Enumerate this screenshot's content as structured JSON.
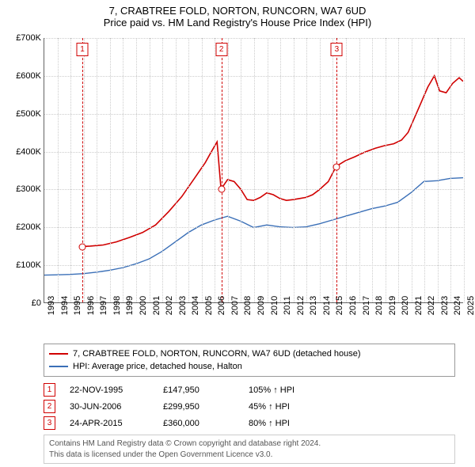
{
  "title": {
    "line1": "7, CRABTREE FOLD, NORTON, RUNCORN, WA7 6UD",
    "line2": "Price paid vs. HM Land Registry's House Price Index (HPI)"
  },
  "chart": {
    "type": "line",
    "background_color": "#ffffff",
    "grid_color": "#cccccc",
    "x": {
      "min": 1993,
      "max": 2025,
      "ticks": [
        1993,
        1994,
        1995,
        1996,
        1997,
        1998,
        1999,
        2000,
        2001,
        2002,
        2003,
        2004,
        2005,
        2006,
        2007,
        2008,
        2009,
        2010,
        2011,
        2012,
        2013,
        2014,
        2015,
        2016,
        2017,
        2018,
        2019,
        2020,
        2021,
        2022,
        2023,
        2024,
        2025
      ]
    },
    "y": {
      "min": 0,
      "max": 700000,
      "currency_prefix": "£",
      "ticks": [
        0,
        100000,
        200000,
        300000,
        400000,
        500000,
        600000,
        700000
      ],
      "tick_labels": [
        "£0",
        "£100K",
        "£200K",
        "£300K",
        "£400K",
        "£500K",
        "£600K",
        "£700K"
      ]
    },
    "series": [
      {
        "id": "property",
        "label": "7, CRABTREE FOLD, NORTON, RUNCORN, WA7 6UD (detached house)",
        "color": "#d00000",
        "width": 1.6,
        "points": [
          [
            1995.9,
            147950
          ],
          [
            1996.5,
            149000
          ],
          [
            1997.5,
            152000
          ],
          [
            1998.5,
            160000
          ],
          [
            1999.5,
            172000
          ],
          [
            2000.5,
            185000
          ],
          [
            2001.5,
            205000
          ],
          [
            2002.5,
            240000
          ],
          [
            2003.5,
            280000
          ],
          [
            2004.5,
            330000
          ],
          [
            2005.3,
            370000
          ],
          [
            2005.7,
            395000
          ],
          [
            2006.2,
            425000
          ],
          [
            2006.5,
            299950
          ],
          [
            2007.0,
            325000
          ],
          [
            2007.5,
            320000
          ],
          [
            2008.0,
            300000
          ],
          [
            2008.5,
            272000
          ],
          [
            2009.0,
            270000
          ],
          [
            2009.5,
            278000
          ],
          [
            2010.0,
            290000
          ],
          [
            2010.5,
            285000
          ],
          [
            2011.0,
            275000
          ],
          [
            2011.5,
            270000
          ],
          [
            2012.0,
            272000
          ],
          [
            2012.5,
            275000
          ],
          [
            2013.0,
            278000
          ],
          [
            2013.5,
            285000
          ],
          [
            2014.0,
            298000
          ],
          [
            2014.7,
            320000
          ],
          [
            2015.3,
            360000
          ],
          [
            2016.0,
            375000
          ],
          [
            2016.7,
            385000
          ],
          [
            2017.5,
            398000
          ],
          [
            2018.3,
            408000
          ],
          [
            2019.0,
            415000
          ],
          [
            2019.7,
            420000
          ],
          [
            2020.3,
            430000
          ],
          [
            2020.8,
            450000
          ],
          [
            2021.3,
            490000
          ],
          [
            2021.8,
            530000
          ],
          [
            2022.3,
            570000
          ],
          [
            2022.8,
            600000
          ],
          [
            2023.2,
            560000
          ],
          [
            2023.7,
            555000
          ],
          [
            2024.2,
            580000
          ],
          [
            2024.7,
            595000
          ],
          [
            2025.0,
            585000
          ]
        ]
      },
      {
        "id": "hpi",
        "label": "HPI: Average price, detached house, Halton",
        "color": "#3a6fb7",
        "width": 1.4,
        "points": [
          [
            1993.0,
            72000
          ],
          [
            1994.0,
            73000
          ],
          [
            1995.0,
            74000
          ],
          [
            1996.0,
            76000
          ],
          [
            1997.0,
            80000
          ],
          [
            1998.0,
            85000
          ],
          [
            1999.0,
            92000
          ],
          [
            2000.0,
            102000
          ],
          [
            2001.0,
            115000
          ],
          [
            2002.0,
            135000
          ],
          [
            2003.0,
            160000
          ],
          [
            2004.0,
            185000
          ],
          [
            2005.0,
            205000
          ],
          [
            2006.0,
            218000
          ],
          [
            2007.0,
            228000
          ],
          [
            2008.0,
            215000
          ],
          [
            2009.0,
            198000
          ],
          [
            2010.0,
            205000
          ],
          [
            2011.0,
            200000
          ],
          [
            2012.0,
            198000
          ],
          [
            2013.0,
            200000
          ],
          [
            2014.0,
            208000
          ],
          [
            2015.0,
            218000
          ],
          [
            2016.0,
            228000
          ],
          [
            2017.0,
            238000
          ],
          [
            2018.0,
            248000
          ],
          [
            2019.0,
            255000
          ],
          [
            2020.0,
            265000
          ],
          [
            2021.0,
            290000
          ],
          [
            2022.0,
            320000
          ],
          [
            2023.0,
            322000
          ],
          [
            2024.0,
            328000
          ],
          [
            2025.0,
            330000
          ]
        ]
      }
    ],
    "sales": [
      {
        "n": "1",
        "year": 1995.9,
        "price": 147950,
        "date": "22-NOV-1995",
        "price_label": "£147,950",
        "delta": "105% ↑ HPI"
      },
      {
        "n": "2",
        "year": 2006.5,
        "price": 299950,
        "date": "30-JUN-2006",
        "price_label": "£299,950",
        "delta": "45% ↑ HPI"
      },
      {
        "n": "3",
        "year": 2015.3,
        "price": 360000,
        "date": "24-APR-2015",
        "price_label": "£360,000",
        "delta": "80% ↑ HPI"
      }
    ]
  },
  "footer": {
    "line1": "Contains HM Land Registry data © Crown copyright and database right 2024.",
    "line2": "This data is licensed under the Open Government Licence v3.0."
  }
}
